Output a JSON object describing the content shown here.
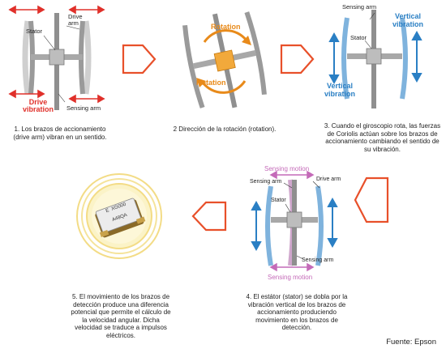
{
  "panel1": {
    "labels": {
      "stator": "Stator",
      "drive_arm": "Drive\narm",
      "sensing_arm": "Sensing arm",
      "drive_vibration": "Drive\nvibration"
    },
    "caption": "1. Los brazos de accionamiento (drive arm) vibran en un sentido."
  },
  "panel2": {
    "labels": {
      "rotation_top": "Rotation",
      "rotation_bottom": "Rotation"
    },
    "caption": "2 Dirección de la rotación (rotation)."
  },
  "panel3": {
    "labels": {
      "sensing_arm": "Sensing arm",
      "stator": "Stator",
      "vertical_vibration_top": "Vertical\nvibration",
      "vertical_vibration_bottom": "Vertical\nvibration"
    },
    "caption": "3. Cuando el giroscopio rota, las fuerzas de Coriolis actúan sobre los brazos de accionamiento cambiando el sentido de su vibración."
  },
  "panel4": {
    "labels": {
      "sensing_motion_top": "Sensing motion",
      "sensing_arm_top": "Sensing arm",
      "drive_arm": "Drive arm",
      "stator": "Stator",
      "sensing_arm_bottom": "Sensing arm",
      "sensing_motion_bottom": "Sensing motion"
    },
    "caption": "4. El estátor (stator) se dobla por la vibración vertical de los brazos de accionamiento produciendo movimiento en los brazos de detección."
  },
  "panel5": {
    "chip_label_1": "E  XG000",
    "chip_label_2": "A48QA",
    "caption": "5. El movimiento de los brazos de detección produce una diferencia potencial que permite el cálculo de la velocidad angular. Dicha velocidad se traduce a impulsos eléctricos."
  },
  "source": "Fuente: Epson",
  "colors": {
    "drive_red": "#e0302a",
    "rotation_orange": "#e88a1a",
    "vertical_blue": "#2a7fc4",
    "sensing_pink": "#c46ab8",
    "flow_arrow": "#e8502a"
  }
}
